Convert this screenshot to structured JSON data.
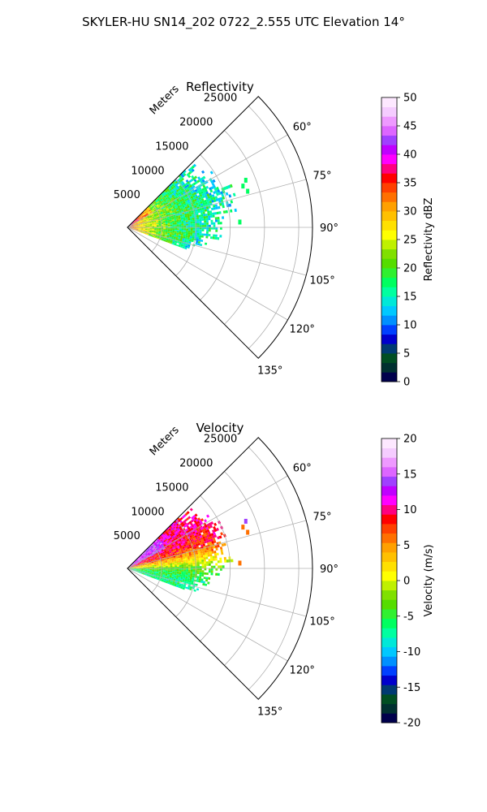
{
  "suptitle": "SKYLER-HU  SN14_202  0722_2.555 UTC Elevation 14°",
  "chart_data": [
    {
      "type": "heatmap",
      "subtype": "polar-sector",
      "title": "Reflectivity",
      "radial_label": "Meters",
      "radial_ticks": [
        "5000",
        "10000",
        "15000",
        "20000",
        "25000"
      ],
      "radial_tick_values": [
        5000,
        10000,
        15000,
        20000,
        25000
      ],
      "rlim": [
        0,
        27000
      ],
      "azimuth_range_deg": [
        45,
        135
      ],
      "azimuth_ticks": [
        "60°",
        "75°",
        "90°",
        "105°",
        "120°",
        "135°"
      ],
      "azimuth_tick_values": [
        60,
        75,
        90,
        105,
        120,
        135
      ],
      "grid": true,
      "colorbar": {
        "label": "Reflectivity dBZ",
        "ticks": [
          "0",
          "5",
          "10",
          "15",
          "20",
          "25",
          "30",
          "35",
          "40",
          "45",
          "50"
        ],
        "range": [
          0,
          50
        ],
        "colors": [
          "#00004c",
          "#003030",
          "#004e22",
          "#003a72",
          "#0000cc",
          "#0040ff",
          "#0090ff",
          "#00c8ff",
          "#00e8d8",
          "#00ffa0",
          "#00ff60",
          "#30f030",
          "#55dd00",
          "#80e000",
          "#bff000",
          "#ffff00",
          "#ffe000",
          "#ffc000",
          "#ffa000",
          "#ff7000",
          "#ff4000",
          "#ff0000",
          "#ff0080",
          "#ff00ff",
          "#c000ff",
          "#a040ff",
          "#dd66ff",
          "#ee99ff",
          "#f5ccff",
          "#fde8ff"
        ]
      },
      "echo_extent": {
        "max_range_m": 15000,
        "azimuth_min_deg": 45,
        "azimuth_max_deg": 110,
        "near_range_peak_dbz": 35,
        "typical_dbz": 20
      }
    },
    {
      "type": "heatmap",
      "subtype": "polar-sector",
      "title": "Velocity",
      "radial_label": "Meters",
      "radial_ticks": [
        "5000",
        "10000",
        "15000",
        "20000",
        "25000"
      ],
      "radial_tick_values": [
        5000,
        10000,
        15000,
        20000,
        25000
      ],
      "rlim": [
        0,
        27000
      ],
      "azimuth_range_deg": [
        45,
        135
      ],
      "azimuth_ticks": [
        "60°",
        "75°",
        "90°",
        "105°",
        "120°",
        "135°"
      ],
      "azimuth_tick_values": [
        60,
        75,
        90,
        105,
        120,
        135
      ],
      "grid": true,
      "colorbar": {
        "label": "Velocity (m/s)",
        "ticks": [
          "-20",
          "-15",
          "-10",
          "-5",
          "0",
          "5",
          "10",
          "15",
          "20"
        ],
        "range": [
          -20,
          20
        ],
        "colors": [
          "#00004c",
          "#003030",
          "#004e22",
          "#003a72",
          "#0000cc",
          "#0040ff",
          "#0090ff",
          "#00c8ff",
          "#00e8d8",
          "#00ffa0",
          "#00ff60",
          "#30f030",
          "#55dd00",
          "#80e000",
          "#bff000",
          "#ffff00",
          "#ffe000",
          "#ffc000",
          "#ffa000",
          "#ff7000",
          "#ff4000",
          "#ff0000",
          "#ff0080",
          "#ff00ff",
          "#c000ff",
          "#a040ff",
          "#dd66ff",
          "#ee99ff",
          "#f5ccff",
          "#fde8ff"
        ]
      },
      "echo_extent": {
        "max_range_m": 15000,
        "azimuth_min_deg": 45,
        "azimuth_max_deg": 110,
        "north_sector_velocity_ms": 10,
        "south_sector_velocity_ms": -7
      }
    }
  ]
}
